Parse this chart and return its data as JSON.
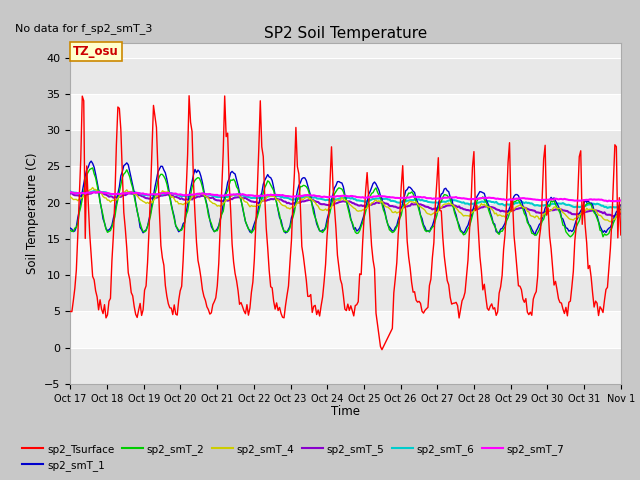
{
  "title": "SP2 Soil Temperature",
  "ylabel": "Soil Temperature (C)",
  "xlabel": "Time",
  "no_data_text": "No data for f_sp2_smT_3",
  "tz_label": "TZ_osu",
  "ylim": [
    -5,
    42
  ],
  "yticks": [
    -5,
    0,
    5,
    10,
    15,
    20,
    25,
    30,
    35,
    40
  ],
  "xtick_labels": [
    "Oct 17",
    "Oct 18",
    "Oct 19",
    "Oct 20",
    "Oct 21",
    "Oct 22",
    "Oct 23",
    "Oct 24",
    "Oct 25",
    "Oct 26",
    "Oct 27",
    "Oct 28",
    "Oct 29",
    "Oct 30",
    "Oct 31",
    "Nov 1"
  ],
  "series_colors": {
    "sp2_Tsurface": "#ff0000",
    "sp2_smT_1": "#0000cc",
    "sp2_smT_2": "#00cc00",
    "sp2_smT_4": "#cccc00",
    "sp2_smT_5": "#8800cc",
    "sp2_smT_6": "#00cccc",
    "sp2_smT_7": "#ff00ff"
  },
  "fig_bg": "#c8c8c8",
  "plot_bg": "#f0f0f0",
  "grid_color": "#ffffff",
  "n_days": 15.5,
  "n_pts": 372
}
